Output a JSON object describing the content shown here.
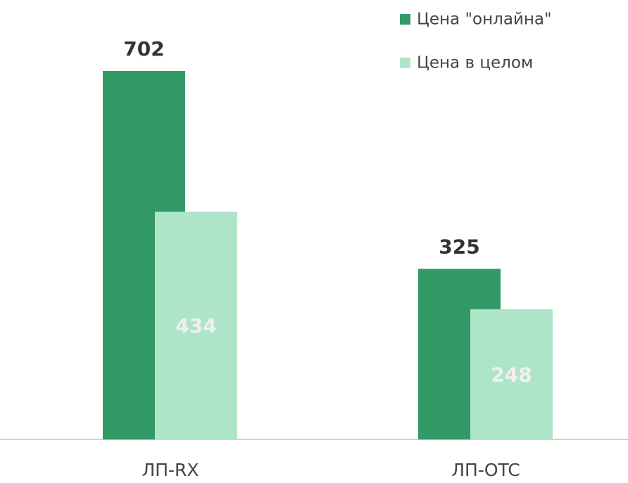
{
  "chart_data": {
    "type": "bar",
    "categories": [
      "ЛП-RX",
      "ЛП-OTC"
    ],
    "series": [
      {
        "name": "Цена \"онлайна\"",
        "color": "#339966",
        "values": [
          702,
          325
        ]
      },
      {
        "name": "Цена в целом",
        "color": "#aee5c8",
        "values": [
          434,
          248
        ]
      }
    ],
    "legend": "top-right"
  }
}
